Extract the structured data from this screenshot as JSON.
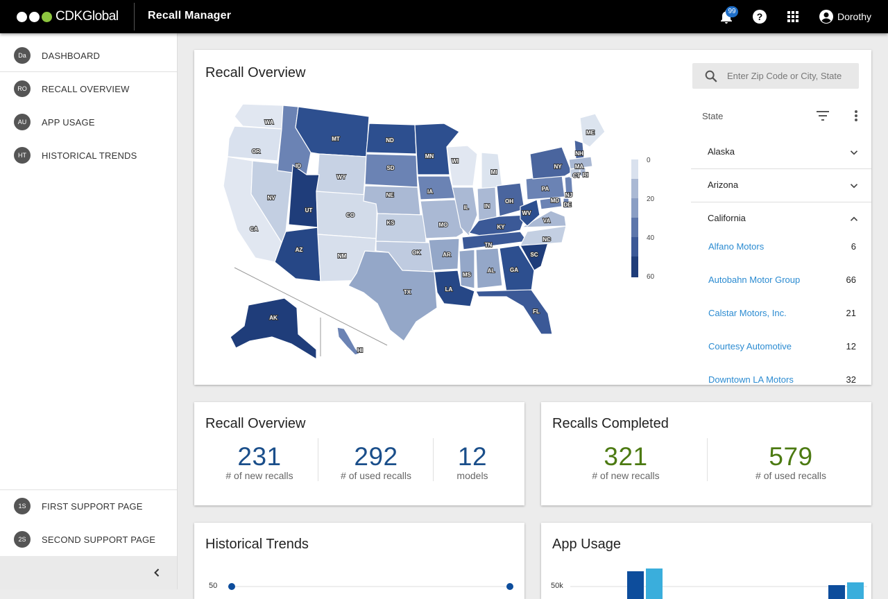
{
  "header": {
    "brand": "CDKGlobal",
    "app_title": "Recall Manager",
    "notifications_count": "99",
    "user_name": "Dorothy",
    "icons": [
      "bell-icon",
      "help-icon",
      "apps-grid-icon",
      "account-icon"
    ]
  },
  "sidebar": {
    "items": [
      {
        "initials": "Da",
        "label": "DASHBOARD"
      },
      {
        "initials": "RO",
        "label": "RECALL OVERVIEW"
      },
      {
        "initials": "AU",
        "label": "APP USAGE"
      },
      {
        "initials": "HT",
        "label": "HISTORICAL TRENDS"
      }
    ],
    "support": [
      {
        "initials": "1S",
        "label": "FIRST SUPPORT PAGE"
      },
      {
        "initials": "2S",
        "label": "SECOND SUPPORT PAGE"
      }
    ],
    "collapse_icon": "chevron-left-icon"
  },
  "map_card": {
    "title": "Recall Overview",
    "search_placeholder": "Enter Zip Code or City, State",
    "state_header": "State",
    "legend": [
      "0",
      "20",
      "40",
      "60"
    ],
    "state_labels": [
      "WA",
      "OR",
      "CA",
      "NV",
      "ID",
      "MT",
      "WY",
      "UT",
      "AZ",
      "CO",
      "NM",
      "ND",
      "SD",
      "NE",
      "KS",
      "OK",
      "TX",
      "MN",
      "IA",
      "MO",
      "AR",
      "LA",
      "WI",
      "IL",
      "MI",
      "IN",
      "OH",
      "KY",
      "TN",
      "MS",
      "AL",
      "GA",
      "FL",
      "SC",
      "NC",
      "VA",
      "WV",
      "PA",
      "NY",
      "ME",
      "NH",
      "MA",
      "CT",
      "RI",
      "NJ",
      "DE",
      "MD",
      "AK",
      "HI"
    ],
    "states": [
      {
        "name": "Alaska",
        "expanded": false
      },
      {
        "name": "Arizona",
        "expanded": false
      },
      {
        "name": "California",
        "expanded": true
      }
    ],
    "dealers": [
      {
        "name": "Alfano Motors",
        "count": "6"
      },
      {
        "name": "Autobahn Motor Group",
        "count": "66"
      },
      {
        "name": "Calstar Motors, Inc.",
        "count": "21"
      },
      {
        "name": "Courtesy Automotive",
        "count": "12"
      },
      {
        "name": "Downtown LA Motors",
        "count": "32"
      }
    ]
  },
  "recall_overview_card": {
    "title": "Recall Overview",
    "stats": [
      {
        "value": "231",
        "caption": "# of new recalls"
      },
      {
        "value": "292",
        "caption": "# of used recalls"
      },
      {
        "value": "12",
        "caption": "models"
      }
    ]
  },
  "recalls_completed_card": {
    "title": "Recalls Completed",
    "stats": [
      {
        "value": "321",
        "caption": "# of new recalls"
      },
      {
        "value": "579",
        "caption": "# of used recalls"
      }
    ]
  },
  "historical_trends_card": {
    "title": "Historical Trends",
    "y_tick_top": "50"
  },
  "app_usage_card": {
    "title": "App Usage",
    "y_tick_top": "50k"
  },
  "colors": {
    "topbar": "#000000",
    "map_darkest": "#1f3d7a",
    "map_lightest": "#e3e9f2",
    "link": "#2b8bd1",
    "stat_blue": "#1a4e8a",
    "stat_green": "#4c7a12",
    "bar_dark": "#0d4d9c",
    "bar_light": "#3aaedc"
  }
}
